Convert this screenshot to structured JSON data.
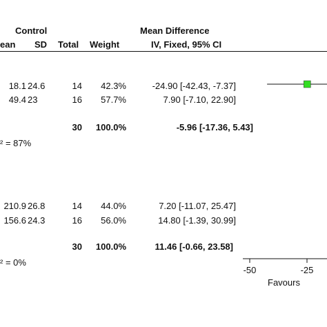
{
  "header": {
    "group_control": "Control",
    "col_mean": "ean",
    "col_sd": "SD",
    "col_total": "Total",
    "col_weight": "Weight",
    "md_title": "Mean Difference",
    "md_method": "IV, Fixed, 95% CI"
  },
  "subgroups": [
    {
      "rows": [
        {
          "mean": "18.1",
          "sd": "24.6",
          "total": "14",
          "weight": "42.3%",
          "ci": "-24.90 [-42.43, -7.37]"
        },
        {
          "mean": "49.4",
          "sd": "23",
          "total": "16",
          "weight": "57.7%",
          "ci": "7.90 [-7.10, 22.90]"
        }
      ],
      "subtotal": {
        "total": "30",
        "weight": "100.0%",
        "ci": "-5.96 [-17.36, 5.43]"
      },
      "heterogeneity": "² = 87%"
    },
    {
      "rows": [
        {
          "mean": "210.9",
          "sd": "26.8",
          "total": "14",
          "weight": "44.0%",
          "ci": "7.20 [-11.07, 25.47]"
        },
        {
          "mean": "156.6",
          "sd": "24.3",
          "total": "16",
          "weight": "56.0%",
          "ci": "14.80 [-1.39, 30.99]"
        }
      ],
      "subtotal": {
        "total": "30",
        "weight": "100.0%",
        "ci": "11.46 [-0.66, 23.58]"
      },
      "heterogeneity": "² = 0%"
    }
  ],
  "axis": {
    "ticks": [
      "-50",
      "-25"
    ],
    "favours_label": "Favours"
  },
  "chart_data": {
    "type": "forest",
    "x_min": -50,
    "visible_ticks": [
      -50,
      -25
    ],
    "studies": [
      {
        "md": -24.9,
        "lo": -42.43,
        "hi": -7.37,
        "weight": 42.3
      },
      {
        "md": 7.9,
        "lo": -7.1,
        "hi": 22.9,
        "weight": 57.7
      },
      {
        "md": 7.2,
        "lo": -11.07,
        "hi": 25.47,
        "weight": 44.0
      },
      {
        "md": 14.8,
        "lo": -1.39,
        "hi": 30.99,
        "weight": 56.0
      }
    ],
    "marker_color": "#33dd22"
  }
}
